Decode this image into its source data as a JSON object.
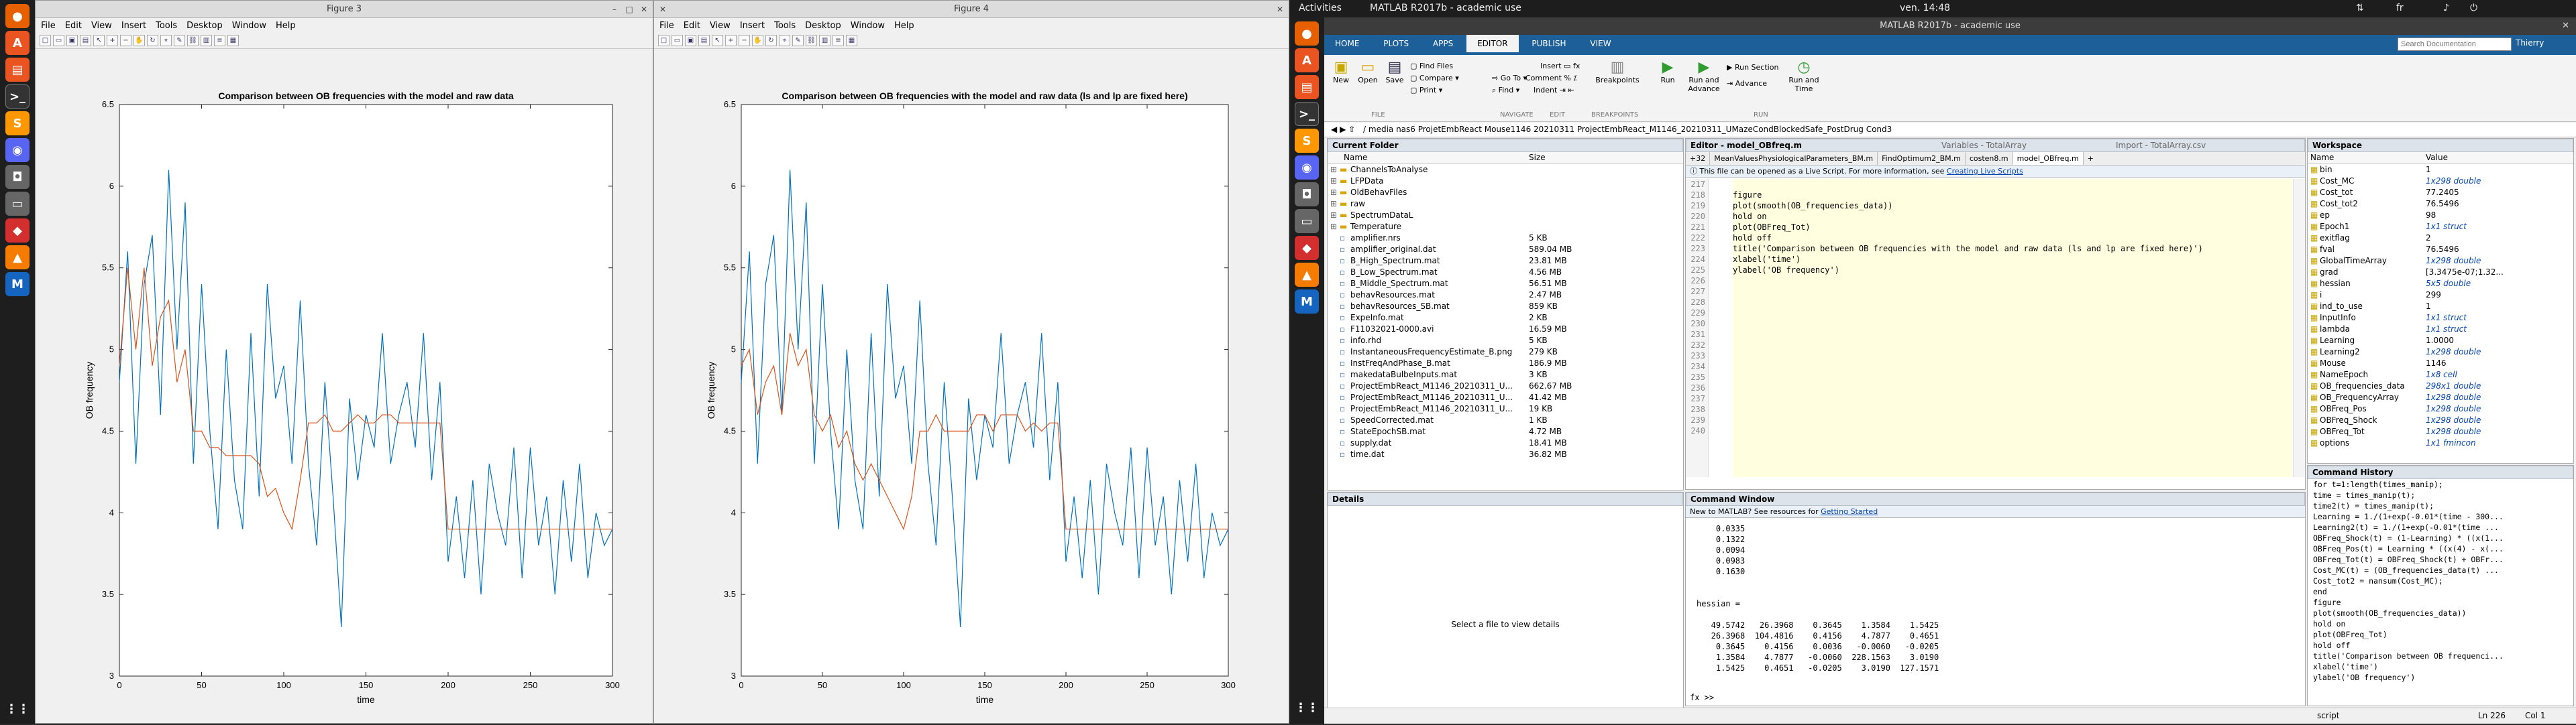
{
  "topbar": {
    "activities": "Activities",
    "app": "MATLAB R2017b - academic use",
    "clock": "ven. 14:48",
    "lang": "fr"
  },
  "figure3": {
    "title": "Figure 3",
    "menu": [
      "File",
      "Edit",
      "View",
      "Insert",
      "Tools",
      "Desktop",
      "Window",
      "Help"
    ],
    "chart_data": {
      "type": "line",
      "title": "Comparison between OB frequencies with the model and raw data",
      "xlabel": "time",
      "ylabel": "OB frequency",
      "xlim": [
        0,
        300
      ],
      "ylim": [
        3,
        6.5
      ],
      "xticks": [
        "0",
        "50",
        "100",
        "150",
        "200",
        "250",
        "300"
      ],
      "yticks": [
        "3",
        "3.5",
        "4",
        "4.5",
        "5",
        "5.5",
        "6",
        "6.5"
      ],
      "series": [
        {
          "color": "#0072bd",
          "x": [
            0,
            5,
            10,
            15,
            20,
            25,
            30,
            35,
            40,
            45,
            50,
            55,
            60,
            65,
            70,
            75,
            80,
            85,
            90,
            95,
            100,
            105,
            110,
            115,
            120,
            125,
            130,
            135,
            140,
            145,
            150,
            155,
            160,
            165,
            170,
            175,
            180,
            185,
            190,
            195,
            200,
            205,
            210,
            215,
            220,
            225,
            230,
            235,
            240,
            245,
            250,
            255,
            260,
            265,
            270,
            275,
            280,
            285,
            290,
            295,
            300
          ],
          "y": [
            4.8,
            5.6,
            4.3,
            5.4,
            5.7,
            4.6,
            6.1,
            5.0,
            5.9,
            4.3,
            5.4,
            4.5,
            3.9,
            5.0,
            4.2,
            3.9,
            5.1,
            4.1,
            5.4,
            4.7,
            4.9,
            4.3,
            5.3,
            4.3,
            3.8,
            4.8,
            4.1,
            3.3,
            4.7,
            4.2,
            4.6,
            4.4,
            5.1,
            4.3,
            4.6,
            4.8,
            4.4,
            5.1,
            4.2,
            4.8,
            3.7,
            4.1,
            3.6,
            4.2,
            3.5,
            4.3,
            4.0,
            3.8,
            4.4,
            3.6,
            4.4,
            3.8,
            4.1,
            3.5,
            4.2,
            3.7,
            4.3,
            3.6,
            4.0,
            3.8,
            3.9
          ]
        },
        {
          "color": "#d95319",
          "x": [
            0,
            5,
            10,
            15,
            20,
            25,
            30,
            35,
            40,
            45,
            50,
            55,
            60,
            65,
            70,
            75,
            80,
            85,
            90,
            95,
            100,
            105,
            110,
            115,
            120,
            125,
            130,
            135,
            140,
            145,
            150,
            155,
            160,
            165,
            170,
            175,
            180,
            185,
            190,
            195,
            200,
            205,
            210,
            215,
            220,
            225,
            230,
            235,
            240,
            245,
            250,
            255,
            260,
            265,
            270,
            275,
            280,
            285,
            290,
            295,
            300
          ],
          "y": [
            4.9,
            5.5,
            5.0,
            5.5,
            4.9,
            5.2,
            5.3,
            4.8,
            5.0,
            4.5,
            4.5,
            4.4,
            4.4,
            4.35,
            4.35,
            4.35,
            4.35,
            4.3,
            4.1,
            4.15,
            4.0,
            3.9,
            4.2,
            4.55,
            4.55,
            4.6,
            4.5,
            4.5,
            4.55,
            4.6,
            4.55,
            4.55,
            4.6,
            4.6,
            4.55,
            4.55,
            4.55,
            4.55,
            4.55,
            4.55,
            3.9,
            3.9,
            3.9,
            3.9,
            3.9,
            3.9,
            3.9,
            3.9,
            3.9,
            3.9,
            3.9,
            3.9,
            3.9,
            3.9,
            3.9,
            3.9,
            3.9,
            3.9,
            3.9,
            3.9,
            3.9
          ]
        }
      ]
    }
  },
  "figure4": {
    "title": "Figure 4",
    "menu": [
      "File",
      "Edit",
      "View",
      "Insert",
      "Tools",
      "Desktop",
      "Window",
      "Help"
    ],
    "chart_data": {
      "type": "line",
      "title": "Comparison between OB frequencies with the model and raw data (ls and lp are fixed here)",
      "xlabel": "time",
      "ylabel": "OB frequency",
      "xlim": [
        0,
        300
      ],
      "ylim": [
        3,
        6.5
      ],
      "xticks": [
        "0",
        "50",
        "100",
        "150",
        "200",
        "250",
        "300"
      ],
      "yticks": [
        "3",
        "3.5",
        "4",
        "4.5",
        "5",
        "5.5",
        "6",
        "6.5"
      ],
      "series": [
        {
          "color": "#0072bd",
          "x": [
            0,
            5,
            10,
            15,
            20,
            25,
            30,
            35,
            40,
            45,
            50,
            55,
            60,
            65,
            70,
            75,
            80,
            85,
            90,
            95,
            100,
            105,
            110,
            115,
            120,
            125,
            130,
            135,
            140,
            145,
            150,
            155,
            160,
            165,
            170,
            175,
            180,
            185,
            190,
            195,
            200,
            205,
            210,
            215,
            220,
            225,
            230,
            235,
            240,
            245,
            250,
            255,
            260,
            265,
            270,
            275,
            280,
            285,
            290,
            295,
            300
          ],
          "y": [
            4.8,
            5.6,
            4.3,
            5.4,
            5.7,
            4.6,
            6.1,
            5.0,
            5.9,
            4.3,
            5.4,
            4.5,
            3.9,
            5.0,
            4.2,
            3.9,
            5.1,
            4.1,
            5.4,
            4.7,
            4.9,
            4.3,
            5.3,
            4.3,
            3.8,
            4.8,
            4.1,
            3.3,
            4.7,
            4.2,
            4.6,
            4.4,
            5.1,
            4.3,
            4.6,
            4.8,
            4.4,
            5.1,
            4.2,
            4.8,
            3.7,
            4.1,
            3.6,
            4.2,
            3.5,
            4.3,
            4.0,
            3.8,
            4.4,
            3.6,
            4.4,
            3.8,
            4.1,
            3.5,
            4.2,
            3.7,
            4.3,
            3.6,
            4.0,
            3.8,
            3.9
          ]
        },
        {
          "color": "#d95319",
          "x": [
            0,
            5,
            10,
            15,
            20,
            25,
            30,
            35,
            40,
            45,
            50,
            55,
            60,
            65,
            70,
            75,
            80,
            85,
            90,
            95,
            100,
            105,
            110,
            115,
            120,
            125,
            130,
            135,
            140,
            145,
            150,
            155,
            160,
            165,
            170,
            175,
            180,
            185,
            190,
            195,
            200,
            205,
            210,
            215,
            220,
            225,
            230,
            235,
            240,
            245,
            250,
            255,
            260,
            265,
            270,
            275,
            280,
            285,
            290,
            295,
            300
          ],
          "y": [
            4.9,
            5.0,
            4.6,
            4.8,
            4.9,
            4.6,
            5.1,
            4.9,
            5.0,
            4.6,
            4.5,
            4.6,
            4.4,
            4.5,
            4.3,
            4.2,
            4.3,
            4.2,
            4.1,
            4.0,
            3.9,
            4.1,
            4.5,
            4.5,
            4.6,
            4.5,
            4.5,
            4.5,
            4.5,
            4.6,
            4.6,
            4.5,
            4.6,
            4.6,
            4.6,
            4.5,
            4.55,
            4.5,
            4.55,
            4.55,
            3.9,
            3.9,
            3.9,
            3.9,
            3.9,
            3.9,
            3.9,
            3.9,
            3.9,
            3.9,
            3.9,
            3.9,
            3.9,
            3.9,
            3.9,
            3.9,
            3.9,
            3.9,
            3.9,
            3.9,
            3.9
          ]
        }
      ]
    }
  },
  "matlab": {
    "title": "MATLAB R2017b - academic use",
    "tabs": [
      "HOME",
      "PLOTS",
      "APPS",
      "EDITOR",
      "PUBLISH",
      "VIEW"
    ],
    "search_placeholder": "Search Documentation",
    "user": "Thierry",
    "ribbon": {
      "new": "New",
      "open": "Open",
      "save": "Save",
      "find_files": "Find Files",
      "compare": "Compare",
      "print": "Print",
      "insert": "Insert",
      "comment": "Comment",
      "indent": "Indent",
      "goto": "Go To",
      "find": "Find",
      "breakpoints": "Breakpoints",
      "run": "Run",
      "run_advance": "Run and Advance",
      "run_section": "Run Section",
      "advance": "Advance",
      "run_time": "Run and Time",
      "sec_file": "FILE",
      "sec_nav": "NAVIGATE",
      "sec_edit": "EDIT",
      "sec_bp": "BREAKPOINTS",
      "sec_run": "RUN"
    },
    "path": "/  media  nas6  ProjetEmbReact  Mouse1146  20210311  ProjectEmbReact_M1146_20210311_UMazeCondBlockedSafe_PostDrug  Cond3",
    "current_folder": {
      "title": "Current Folder",
      "col_name": "Name",
      "col_size": "Size",
      "items": [
        {
          "n": "ChannelsToAnalyse",
          "s": "",
          "d": true
        },
        {
          "n": "LFPData",
          "s": "",
          "d": true
        },
        {
          "n": "OldBehavFiles",
          "s": "",
          "d": true
        },
        {
          "n": "raw",
          "s": "",
          "d": true
        },
        {
          "n": "SpectrumDataL",
          "s": "",
          "d": true
        },
        {
          "n": "Temperature",
          "s": "",
          "d": true
        },
        {
          "n": "amplifier.nrs",
          "s": "5 KB"
        },
        {
          "n": "amplifier_original.dat",
          "s": "589.04 MB"
        },
        {
          "n": "B_High_Spectrum.mat",
          "s": "23.81 MB"
        },
        {
          "n": "B_Low_Spectrum.mat",
          "s": "4.56 MB"
        },
        {
          "n": "B_Middle_Spectrum.mat",
          "s": "56.51 MB"
        },
        {
          "n": "behavResources.mat",
          "s": "2.47 MB"
        },
        {
          "n": "behavResources_SB.mat",
          "s": "859 KB"
        },
        {
          "n": "ExpeInfo.mat",
          "s": "2 KB"
        },
        {
          "n": "F11032021-0000.avi",
          "s": "16.59 MB"
        },
        {
          "n": "info.rhd",
          "s": "5 KB"
        },
        {
          "n": "InstantaneousFrequencyEstimate_B.png",
          "s": "279 KB"
        },
        {
          "n": "InstFreqAndPhase_B.mat",
          "s": "186.9 MB"
        },
        {
          "n": "makedataBulbeInputs.mat",
          "s": "3 KB"
        },
        {
          "n": "ProjectEmbReact_M1146_20210311_U...",
          "s": "662.67 MB"
        },
        {
          "n": "ProjectEmbReact_M1146_20210311_U...",
          "s": "41.42 MB"
        },
        {
          "n": "ProjectEmbReact_M1146_20210311_U...",
          "s": "19 KB"
        },
        {
          "n": "SpeedCorrected.mat",
          "s": "1 KB"
        },
        {
          "n": "StateEpochSB.mat",
          "s": "4.72 MB"
        },
        {
          "n": "supply.dat",
          "s": "18.41 MB"
        },
        {
          "n": "time.dat",
          "s": "36.82 MB"
        }
      ]
    },
    "details": {
      "title": "Details",
      "empty": "Select a file to view details"
    },
    "editor": {
      "title": "Editor - model_OBfreq.m",
      "variables_tab": "Variables - TotalArray",
      "import_tab": "Import - TotalArray.csv",
      "tabs": [
        "MeanValuesPhysiologicalParameters_BM.m",
        "FindOptimum2_BM.m",
        "costen8.m",
        "model_OBfreq.m"
      ],
      "info": "This file can be opened as a Live Script. For more information, see",
      "info_link": "Creating Live Scripts",
      "lines": [
        {
          "n": "217",
          "t": ""
        },
        {
          "n": "218",
          "t": "figure"
        },
        {
          "n": "219",
          "t": "plot(smooth(OB_frequencies_data))"
        },
        {
          "n": "220",
          "t": "hold on"
        },
        {
          "n": "221",
          "t": "plot(OBFreq_Tot)"
        },
        {
          "n": "222",
          "t": "hold off"
        },
        {
          "n": "223",
          "t": "title('Comparison between OB frequencies with the model and raw data (ls and lp are fixed here)')"
        },
        {
          "n": "224",
          "t": "xlabel('time')"
        },
        {
          "n": "225",
          "t": "ylabel('OB frequency')"
        },
        {
          "n": "226",
          "t": ""
        },
        {
          "n": "227",
          "t": ""
        },
        {
          "n": "228",
          "t": ""
        },
        {
          "n": "229",
          "t": ""
        },
        {
          "n": "230",
          "t": ""
        },
        {
          "n": "231",
          "t": ""
        },
        {
          "n": "232",
          "t": ""
        },
        {
          "n": "233",
          "t": ""
        },
        {
          "n": "234",
          "t": ""
        },
        {
          "n": "235",
          "t": ""
        },
        {
          "n": "236",
          "t": ""
        },
        {
          "n": "237",
          "t": ""
        },
        {
          "n": "238",
          "t": ""
        },
        {
          "n": "239",
          "t": ""
        },
        {
          "n": "240",
          "t": ""
        }
      ]
    },
    "workspace": {
      "title": "Workspace",
      "col_name": "Name",
      "col_value": "Value",
      "vars": [
        {
          "n": "bin",
          "v": "1"
        },
        {
          "n": "Cost_MC",
          "v": "1x298 double",
          "l": true
        },
        {
          "n": "Cost_tot",
          "v": "77.2405"
        },
        {
          "n": "Cost_tot2",
          "v": "76.5496"
        },
        {
          "n": "ep",
          "v": "98"
        },
        {
          "n": "Epoch1",
          "v": "1x1 struct",
          "l": true
        },
        {
          "n": "exitflag",
          "v": "2"
        },
        {
          "n": "fval",
          "v": "76.5496"
        },
        {
          "n": "GlobalTimeArray",
          "v": "1x298 double",
          "l": true
        },
        {
          "n": "grad",
          "v": "[3.3475e-07;1.32..."
        },
        {
          "n": "hessian",
          "v": "5x5 double",
          "l": true
        },
        {
          "n": "i",
          "v": "299"
        },
        {
          "n": "ind_to_use",
          "v": "1"
        },
        {
          "n": "InputInfo",
          "v": "1x1 struct",
          "l": true
        },
        {
          "n": "lambda",
          "v": "1x1 struct",
          "l": true
        },
        {
          "n": "Learning",
          "v": "1.0000"
        },
        {
          "n": "Learning2",
          "v": "1x298 double",
          "l": true
        },
        {
          "n": "Mouse",
          "v": "1146"
        },
        {
          "n": "NameEpoch",
          "v": "1x8 cell",
          "l": true
        },
        {
          "n": "OB_frequencies_data",
          "v": "298x1 double",
          "l": true
        },
        {
          "n": "OB_FrequencyArray",
          "v": "1x298 double",
          "l": true
        },
        {
          "n": "OBFreq_Pos",
          "v": "1x298 double",
          "l": true
        },
        {
          "n": "OBFreq_Shock",
          "v": "1x298 double",
          "l": true
        },
        {
          "n": "OBFreq_Tot",
          "v": "1x298 double",
          "l": true
        },
        {
          "n": "options",
          "v": "1x1 fmincon",
          "l": true
        }
      ]
    },
    "history": {
      "title": "Command History",
      "lines": [
        "for t=1:length(times_manip);",
        "time = times_manip(t);",
        "time2(t) = times_manip(t);",
        "Learning = 1./(1+exp(-0.01*(time - 300...",
        "Learning2(t) = 1./(1+exp(-0.01*(time ...",
        "OBFreq_Shock(t) = (1-Learning) * ((x(1...",
        "OBFreq_Pos(t) = Learning * ((x(4) - x(...",
        "OBFreq_Tot(t) = OBFreq_Shock(t) + OBFr...",
        "Cost_MC(t) = (OB_frequencies_data(t) ...",
        "Cost_tot2 = nansum(Cost_MC);",
        "end",
        "figure",
        "plot(smooth(OB_frequencies_data))",
        "hold on",
        "plot(OBFreq_Tot)",
        "hold off",
        "title('Comparison between OB frequenci...",
        "xlabel('time')",
        "ylabel('OB frequency')"
      ]
    },
    "command": {
      "title": "Command Window",
      "banner": "New to MATLAB? See resources for",
      "banner_link": "Getting Started",
      "output": [
        "    0.0335",
        "    0.1322",
        "    0.0094",
        "    0.0983",
        "    0.1630",
        "",
        "",
        "hessian =",
        "",
        "   49.5742   26.3968    0.3645    1.3584    1.5425",
        "   26.3968  104.4816    0.4156    4.7877    0.4651",
        "    0.3645    0.4156    0.0036   -0.0060   -0.0205",
        "    1.3584    4.7877   -0.0060  228.1563    3.0190",
        "    1.5425    0.4651   -0.0205    3.0190  127.1571"
      ],
      "prompt": "fx >>"
    },
    "status": {
      "script": "script",
      "ln": "Ln  226",
      "col": "Col  1"
    }
  }
}
